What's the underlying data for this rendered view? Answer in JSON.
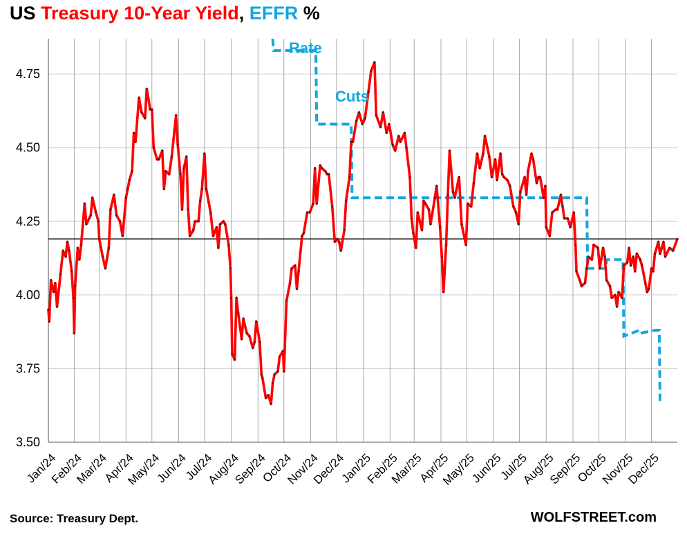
{
  "title": {
    "part1": "US ",
    "part2": "Treasury 10-Year Yield",
    "part3": ", ",
    "part4": "EFFR",
    "part5": " %"
  },
  "source": "Source: Treasury Dept.",
  "brand": "WOLFSTREET.com",
  "colors": {
    "yield": "#ff0000",
    "yield_dots": "#222222",
    "effr": "#12a7e0",
    "reference": "#000000",
    "grid": "#d0d0d0"
  },
  "chart_data": {
    "type": "line",
    "ylim": [
      3.5,
      4.87
    ],
    "yticks": [
      "3.50",
      "3.75",
      "4.00",
      "4.25",
      "4.50",
      "4.75"
    ],
    "months": [
      "Jan/24",
      "Feb/24",
      "Mar/24",
      "Apr/24",
      "May/24",
      "Jun/24",
      "Jul/24",
      "Aug/24",
      "Sep/24",
      "Oct/24",
      "Nov/24",
      "Dec/24",
      "Jan/25",
      "Feb/25",
      "Mar/25",
      "Apr/25",
      "May/25",
      "Jun/25",
      "Jul/25",
      "Aug/25",
      "Sep/25",
      "Oct/25",
      "Nov/25",
      "Dec/25"
    ],
    "x_start": "2024-01-02",
    "x_end": "2025-12-31",
    "grid": "vertical",
    "reference_line": 4.19,
    "annotations": [
      "Rate",
      "Cuts"
    ],
    "series": [
      {
        "key": "ten_year",
        "style": "solid-red-with-dark-dots",
        "points": [
          [
            "2024-01-02",
            3.95
          ],
          [
            "2024-01-03",
            3.91
          ],
          [
            "2024-01-05",
            4.05
          ],
          [
            "2024-01-08",
            4.01
          ],
          [
            "2024-01-10",
            4.04
          ],
          [
            "2024-01-12",
            3.96
          ],
          [
            "2024-01-16",
            4.07
          ],
          [
            "2024-01-19",
            4.15
          ],
          [
            "2024-01-22",
            4.13
          ],
          [
            "2024-01-24",
            4.18
          ],
          [
            "2024-01-26",
            4.15
          ],
          [
            "2024-01-29",
            4.08
          ],
          [
            "2024-01-31",
            3.99
          ],
          [
            "2024-02-01",
            3.87
          ],
          [
            "2024-02-02",
            4.03
          ],
          [
            "2024-02-05",
            4.16
          ],
          [
            "2024-02-07",
            4.12
          ],
          [
            "2024-02-09",
            4.17
          ],
          [
            "2024-02-13",
            4.31
          ],
          [
            "2024-02-15",
            4.24
          ],
          [
            "2024-02-20",
            4.27
          ],
          [
            "2024-02-22",
            4.33
          ],
          [
            "2024-02-26",
            4.28
          ],
          [
            "2024-02-29",
            4.25
          ],
          [
            "2024-03-01",
            4.19
          ],
          [
            "2024-03-05",
            4.13
          ],
          [
            "2024-03-08",
            4.09
          ],
          [
            "2024-03-12",
            4.16
          ],
          [
            "2024-03-14",
            4.29
          ],
          [
            "2024-03-18",
            4.34
          ],
          [
            "2024-03-21",
            4.27
          ],
          [
            "2024-03-25",
            4.25
          ],
          [
            "2024-03-28",
            4.2
          ],
          [
            "2024-04-01",
            4.33
          ],
          [
            "2024-04-03",
            4.36
          ],
          [
            "2024-04-05",
            4.39
          ],
          [
            "2024-04-08",
            4.42
          ],
          [
            "2024-04-10",
            4.55
          ],
          [
            "2024-04-12",
            4.52
          ],
          [
            "2024-04-16",
            4.67
          ],
          [
            "2024-04-19",
            4.62
          ],
          [
            "2024-04-23",
            4.6
          ],
          [
            "2024-04-25",
            4.7
          ],
          [
            "2024-04-29",
            4.63
          ],
          [
            "2024-05-01",
            4.63
          ],
          [
            "2024-05-03",
            4.5
          ],
          [
            "2024-05-07",
            4.46
          ],
          [
            "2024-05-09",
            4.46
          ],
          [
            "2024-05-13",
            4.49
          ],
          [
            "2024-05-15",
            4.36
          ],
          [
            "2024-05-17",
            4.42
          ],
          [
            "2024-05-21",
            4.41
          ],
          [
            "2024-05-24",
            4.47
          ],
          [
            "2024-05-29",
            4.61
          ],
          [
            "2024-05-31",
            4.51
          ],
          [
            "2024-06-03",
            4.41
          ],
          [
            "2024-06-05",
            4.29
          ],
          [
            "2024-06-07",
            4.43
          ],
          [
            "2024-06-10",
            4.47
          ],
          [
            "2024-06-12",
            4.29
          ],
          [
            "2024-06-14",
            4.2
          ],
          [
            "2024-06-18",
            4.22
          ],
          [
            "2024-06-20",
            4.25
          ],
          [
            "2024-06-24",
            4.25
          ],
          [
            "2024-06-26",
            4.32
          ],
          [
            "2024-06-28",
            4.36
          ],
          [
            "2024-07-01",
            4.48
          ],
          [
            "2024-07-03",
            4.36
          ],
          [
            "2024-07-08",
            4.28
          ],
          [
            "2024-07-11",
            4.2
          ],
          [
            "2024-07-15",
            4.23
          ],
          [
            "2024-07-17",
            4.16
          ],
          [
            "2024-07-19",
            4.24
          ],
          [
            "2024-07-23",
            4.25
          ],
          [
            "2024-07-25",
            4.24
          ],
          [
            "2024-07-29",
            4.17
          ],
          [
            "2024-07-31",
            4.09
          ],
          [
            "2024-08-01",
            3.99
          ],
          [
            "2024-08-02",
            3.8
          ],
          [
            "2024-08-05",
            3.78
          ],
          [
            "2024-08-07",
            3.99
          ],
          [
            "2024-08-09",
            3.94
          ],
          [
            "2024-08-13",
            3.85
          ],
          [
            "2024-08-15",
            3.92
          ],
          [
            "2024-08-19",
            3.87
          ],
          [
            "2024-08-22",
            3.86
          ],
          [
            "2024-08-26",
            3.82
          ],
          [
            "2024-08-28",
            3.84
          ],
          [
            "2024-08-30",
            3.91
          ],
          [
            "2024-09-03",
            3.84
          ],
          [
            "2024-09-05",
            3.73
          ],
          [
            "2024-09-06",
            3.72
          ],
          [
            "2024-09-10",
            3.65
          ],
          [
            "2024-09-13",
            3.66
          ],
          [
            "2024-09-16",
            3.63
          ],
          [
            "2024-09-18",
            3.7
          ],
          [
            "2024-09-20",
            3.73
          ],
          [
            "2024-09-24",
            3.74
          ],
          [
            "2024-09-26",
            3.79
          ],
          [
            "2024-09-30",
            3.81
          ],
          [
            "2024-10-01",
            3.74
          ],
          [
            "2024-10-04",
            3.98
          ],
          [
            "2024-10-08",
            4.04
          ],
          [
            "2024-10-10",
            4.09
          ],
          [
            "2024-10-14",
            4.1
          ],
          [
            "2024-10-16",
            4.02
          ],
          [
            "2024-10-18",
            4.08
          ],
          [
            "2024-10-22",
            4.2
          ],
          [
            "2024-10-24",
            4.21
          ],
          [
            "2024-10-28",
            4.28
          ],
          [
            "2024-10-31",
            4.28
          ],
          [
            "2024-11-04",
            4.31
          ],
          [
            "2024-11-06",
            4.43
          ],
          [
            "2024-11-08",
            4.31
          ],
          [
            "2024-11-12",
            4.44
          ],
          [
            "2024-11-14",
            4.43
          ],
          [
            "2024-11-18",
            4.42
          ],
          [
            "2024-11-20",
            4.41
          ],
          [
            "2024-11-22",
            4.41
          ],
          [
            "2024-11-26",
            4.3
          ],
          [
            "2024-11-29",
            4.18
          ],
          [
            "2024-12-02",
            4.19
          ],
          [
            "2024-12-04",
            4.18
          ],
          [
            "2024-12-06",
            4.15
          ],
          [
            "2024-12-10",
            4.22
          ],
          [
            "2024-12-12",
            4.32
          ],
          [
            "2024-12-16",
            4.4
          ],
          [
            "2024-12-18",
            4.52
          ],
          [
            "2024-12-20",
            4.52
          ],
          [
            "2024-12-24",
            4.59
          ],
          [
            "2024-12-27",
            4.62
          ],
          [
            "2024-12-31",
            4.58
          ],
          [
            "2025-01-03",
            4.6
          ],
          [
            "2025-01-07",
            4.69
          ],
          [
            "2025-01-10",
            4.76
          ],
          [
            "2025-01-14",
            4.79
          ],
          [
            "2025-01-16",
            4.61
          ],
          [
            "2025-01-21",
            4.57
          ],
          [
            "2025-01-24",
            4.62
          ],
          [
            "2025-01-28",
            4.55
          ],
          [
            "2025-01-31",
            4.58
          ],
          [
            "2025-02-04",
            4.51
          ],
          [
            "2025-02-07",
            4.49
          ],
          [
            "2025-02-11",
            4.54
          ],
          [
            "2025-02-13",
            4.52
          ],
          [
            "2025-02-18",
            4.55
          ],
          [
            "2025-02-20",
            4.5
          ],
          [
            "2025-02-24",
            4.4
          ],
          [
            "2025-02-26",
            4.26
          ],
          [
            "2025-02-28",
            4.21
          ],
          [
            "2025-03-03",
            4.16
          ],
          [
            "2025-03-05",
            4.28
          ],
          [
            "2025-03-10",
            4.22
          ],
          [
            "2025-03-12",
            4.32
          ],
          [
            "2025-03-14",
            4.31
          ],
          [
            "2025-03-18",
            4.29
          ],
          [
            "2025-03-20",
            4.24
          ],
          [
            "2025-03-25",
            4.33
          ],
          [
            "2025-03-27",
            4.37
          ],
          [
            "2025-03-31",
            4.23
          ],
          [
            "2025-04-02",
            4.13
          ],
          [
            "2025-04-04",
            4.01
          ],
          [
            "2025-04-07",
            4.17
          ],
          [
            "2025-04-09",
            4.34
          ],
          [
            "2025-04-11",
            4.49
          ],
          [
            "2025-04-15",
            4.35
          ],
          [
            "2025-04-17",
            4.33
          ],
          [
            "2025-04-22",
            4.4
          ],
          [
            "2025-04-25",
            4.24
          ],
          [
            "2025-04-30",
            4.17
          ],
          [
            "2025-05-02",
            4.31
          ],
          [
            "2025-05-06",
            4.3
          ],
          [
            "2025-05-09",
            4.38
          ],
          [
            "2025-05-13",
            4.48
          ],
          [
            "2025-05-16",
            4.43
          ],
          [
            "2025-05-20",
            4.48
          ],
          [
            "2025-05-22",
            4.54
          ],
          [
            "2025-05-27",
            4.47
          ],
          [
            "2025-05-30",
            4.4
          ],
          [
            "2025-06-03",
            4.46
          ],
          [
            "2025-06-05",
            4.39
          ],
          [
            "2025-06-09",
            4.48
          ],
          [
            "2025-06-11",
            4.41
          ],
          [
            "2025-06-13",
            4.4
          ],
          [
            "2025-06-17",
            4.39
          ],
          [
            "2025-06-20",
            4.37
          ],
          [
            "2025-06-24",
            4.3
          ],
          [
            "2025-06-27",
            4.28
          ],
          [
            "2025-06-30",
            4.24
          ],
          [
            "2025-07-02",
            4.35
          ],
          [
            "2025-07-07",
            4.4
          ],
          [
            "2025-07-09",
            4.34
          ],
          [
            "2025-07-11",
            4.42
          ],
          [
            "2025-07-15",
            4.48
          ],
          [
            "2025-07-17",
            4.46
          ],
          [
            "2025-07-21",
            4.38
          ],
          [
            "2025-07-23",
            4.4
          ],
          [
            "2025-07-25",
            4.4
          ],
          [
            "2025-07-29",
            4.33
          ],
          [
            "2025-07-31",
            4.37
          ],
          [
            "2025-08-01",
            4.23
          ],
          [
            "2025-08-05",
            4.2
          ],
          [
            "2025-08-08",
            4.28
          ],
          [
            "2025-08-12",
            4.29
          ],
          [
            "2025-08-14",
            4.29
          ],
          [
            "2025-08-18",
            4.34
          ],
          [
            "2025-08-20",
            4.3
          ],
          [
            "2025-08-22",
            4.26
          ],
          [
            "2025-08-26",
            4.26
          ],
          [
            "2025-08-29",
            4.23
          ],
          [
            "2025-09-02",
            4.28
          ],
          [
            "2025-09-04",
            4.17
          ],
          [
            "2025-09-05",
            4.08
          ],
          [
            "2025-09-09",
            4.05
          ],
          [
            "2025-09-11",
            4.03
          ],
          [
            "2025-09-15",
            4.04
          ],
          [
            "2025-09-17",
            4.09
          ],
          [
            "2025-09-19",
            4.13
          ],
          [
            "2025-09-23",
            4.12
          ],
          [
            "2025-09-25",
            4.17
          ],
          [
            "2025-09-30",
            4.16
          ],
          [
            "2025-10-02",
            4.09
          ],
          [
            "2025-10-06",
            4.16
          ],
          [
            "2025-10-08",
            4.13
          ],
          [
            "2025-10-10",
            4.05
          ],
          [
            "2025-10-14",
            4.03
          ],
          [
            "2025-10-16",
            3.99
          ],
          [
            "2025-10-20",
            4.0
          ],
          [
            "2025-10-22",
            3.96
          ],
          [
            "2025-10-24",
            4.01
          ],
          [
            "2025-10-28",
            3.99
          ],
          [
            "2025-10-30",
            4.1
          ],
          [
            "2025-11-03",
            4.11
          ],
          [
            "2025-11-05",
            4.16
          ],
          [
            "2025-11-07",
            4.1
          ],
          [
            "2025-11-10",
            4.13
          ],
          [
            "2025-11-12",
            4.08
          ],
          [
            "2025-11-14",
            4.14
          ],
          [
            "2025-11-18",
            4.12
          ],
          [
            "2025-11-20",
            4.1
          ],
          [
            "2025-11-24",
            4.04
          ],
          [
            "2025-11-26",
            4.01
          ],
          [
            "2025-11-28",
            4.02
          ],
          [
            "2025-12-01",
            4.09
          ],
          [
            "2025-12-03",
            4.08
          ],
          [
            "2025-12-05",
            4.14
          ],
          [
            "2025-12-09",
            4.18
          ],
          [
            "2025-12-11",
            4.14
          ],
          [
            "2025-12-15",
            4.18
          ],
          [
            "2025-12-17",
            4.13
          ],
          [
            "2025-12-22",
            4.16
          ],
          [
            "2025-12-26",
            4.15
          ],
          [
            "2025-12-31",
            4.19
          ]
        ]
      },
      {
        "key": "effr",
        "style": "dashed-cyan",
        "points": [
          [
            "2024-09-18",
            4.87
          ],
          [
            "2024-09-19",
            4.83
          ],
          [
            "2024-11-07",
            4.83
          ],
          [
            "2024-11-08",
            4.58
          ],
          [
            "2024-12-18",
            4.58
          ],
          [
            "2024-12-19",
            4.33
          ],
          [
            "2025-09-17",
            4.33
          ],
          [
            "2025-09-18",
            4.09
          ],
          [
            "2025-10-09",
            4.09
          ],
          [
            "2025-10-10",
            4.12
          ],
          [
            "2025-10-29",
            4.12
          ],
          [
            "2025-10-30",
            3.86
          ],
          [
            "2025-11-17",
            3.88
          ],
          [
            "2025-11-18",
            3.87
          ],
          [
            "2025-12-05",
            3.88
          ],
          [
            "2025-12-10",
            3.88
          ],
          [
            "2025-12-11",
            3.64
          ]
        ]
      }
    ]
  }
}
